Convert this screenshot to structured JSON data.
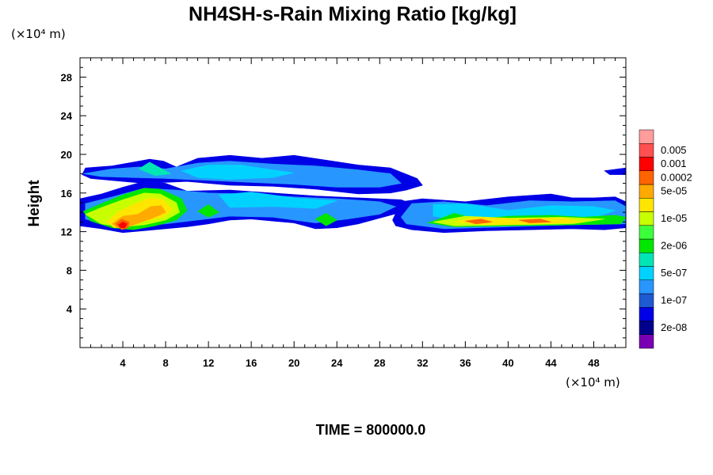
{
  "chart_data": {
    "type": "heatmap",
    "title": "NH4SH-s-Rain Mixing Ratio [kg/kg]",
    "ylabel": "Height",
    "x_unit": "(×10⁴ m)",
    "y_unit": "(×10⁴ m)",
    "xlim": [
      0,
      51
    ],
    "ylim": [
      0,
      30
    ],
    "x_ticks": [
      4,
      8,
      12,
      16,
      20,
      24,
      28,
      32,
      36,
      40,
      44,
      48
    ],
    "y_ticks": [
      4,
      8,
      12,
      16,
      20,
      24,
      28
    ],
    "time_label": "TIME = 800000.0",
    "colorbar": {
      "colors": [
        "#7a00b4",
        "#00008c",
        "#0000e6",
        "#1e5ad2",
        "#2896ff",
        "#00d2ff",
        "#00e6b4",
        "#00e600",
        "#3cff3c",
        "#c8ff00",
        "#ffe600",
        "#ffaa00",
        "#ff6400",
        "#ff0000",
        "#ff5050",
        "#ff9c9c"
      ],
      "labels": [
        {
          "text": "2e-08",
          "band": 1
        },
        {
          "text": "1e-07",
          "band": 3
        },
        {
          "text": "5e-07",
          "band": 5
        },
        {
          "text": "2e-06",
          "band": 7
        },
        {
          "text": "1e-05",
          "band": 9
        },
        {
          "text": "5e-05",
          "band": 11
        },
        {
          "text": "0.0002",
          "band": 12
        },
        {
          "text": "0.001",
          "band": 13
        },
        {
          "text": "0.005",
          "band": 14
        }
      ]
    },
    "regions": [
      {
        "level": 2,
        "points": [
          [
            0.2,
            17.9
          ],
          [
            0.5,
            18.6
          ],
          [
            3,
            18.8
          ],
          [
            5.5,
            19.3
          ],
          [
            6.5,
            19.5
          ],
          [
            7.8,
            19.3
          ],
          [
            9,
            18.7
          ],
          [
            11,
            19.6
          ],
          [
            14,
            19.9
          ],
          [
            17,
            19.6
          ],
          [
            20,
            19.9
          ],
          [
            23,
            19.4
          ],
          [
            26,
            18.9
          ],
          [
            29,
            18.6
          ],
          [
            31.5,
            17.5
          ],
          [
            32,
            16.8
          ],
          [
            30.5,
            16.3
          ],
          [
            29,
            16.0
          ],
          [
            26,
            15.9
          ],
          [
            22,
            16.4
          ],
          [
            18,
            16.7
          ],
          [
            14,
            16.8
          ],
          [
            10,
            17.2
          ],
          [
            6,
            17.0
          ],
          [
            3,
            17.3
          ],
          [
            1,
            17.5
          ]
        ]
      },
      {
        "level": 2,
        "points": [
          [
            0,
            15.4
          ],
          [
            2,
            15.9
          ],
          [
            4,
            16.6
          ],
          [
            6,
            17.2
          ],
          [
            8,
            17.0
          ],
          [
            10,
            16.2
          ],
          [
            14,
            16.3
          ],
          [
            18,
            16.0
          ],
          [
            22,
            15.7
          ],
          [
            26,
            15.5
          ],
          [
            30,
            15.3
          ],
          [
            31,
            14.9
          ],
          [
            30,
            14.0
          ],
          [
            28,
            13.4
          ],
          [
            26,
            12.8
          ],
          [
            24,
            12.4
          ],
          [
            22,
            12.3
          ],
          [
            20,
            12.9
          ],
          [
            18,
            13.1
          ],
          [
            16,
            13.3
          ],
          [
            14,
            13.2
          ],
          [
            12,
            12.8
          ],
          [
            10,
            12.5
          ],
          [
            8,
            12.3
          ],
          [
            6,
            12.1
          ],
          [
            4,
            11.9
          ],
          [
            2,
            12.3
          ],
          [
            0,
            12.6
          ]
        ]
      },
      {
        "level": 2,
        "points": [
          [
            29.2,
            13.2
          ],
          [
            30,
            15.1
          ],
          [
            32,
            15.4
          ],
          [
            36,
            15.1
          ],
          [
            40,
            15.6
          ],
          [
            44,
            15.9
          ],
          [
            46,
            15.5
          ],
          [
            48,
            15.5
          ],
          [
            50,
            15.6
          ],
          [
            51,
            15.1
          ],
          [
            51,
            12.4
          ],
          [
            49,
            12.2
          ],
          [
            46,
            12.3
          ],
          [
            42,
            12.2
          ],
          [
            38,
            12.1
          ],
          [
            34,
            11.9
          ],
          [
            31,
            12.2
          ],
          [
            29.5,
            12.6
          ]
        ]
      },
      {
        "level": 2,
        "points": [
          [
            49,
            18.3
          ],
          [
            51,
            18.6
          ],
          [
            51,
            17.9
          ],
          [
            49.5,
            17.9
          ]
        ]
      },
      {
        "level": 4,
        "points": [
          [
            0.3,
            18.0
          ],
          [
            3,
            18.5
          ],
          [
            5.5,
            18.7
          ],
          [
            8,
            18.5
          ],
          [
            11,
            19.1
          ],
          [
            14,
            19.3
          ],
          [
            18,
            19.0
          ],
          [
            22,
            18.8
          ],
          [
            26,
            18.4
          ],
          [
            29,
            18.0
          ],
          [
            30,
            17.0
          ],
          [
            28,
            16.6
          ],
          [
            24,
            16.6
          ],
          [
            20,
            16.9
          ],
          [
            16,
            17.1
          ],
          [
            12,
            17.3
          ],
          [
            8,
            17.5
          ],
          [
            5,
            17.6
          ],
          [
            2,
            17.7
          ]
        ]
      },
      {
        "level": 4,
        "points": [
          [
            0.5,
            14.9
          ],
          [
            3,
            15.6
          ],
          [
            6,
            16.5
          ],
          [
            9,
            16.3
          ],
          [
            12,
            16.0
          ],
          [
            16,
            15.9
          ],
          [
            20,
            15.6
          ],
          [
            24,
            15.4
          ],
          [
            28,
            15.1
          ],
          [
            29.5,
            14.6
          ],
          [
            28,
            13.8
          ],
          [
            25,
            13.3
          ],
          [
            22,
            12.9
          ],
          [
            18,
            13.5
          ],
          [
            14,
            13.6
          ],
          [
            11,
            13.2
          ],
          [
            8,
            12.8
          ],
          [
            5,
            12.5
          ],
          [
            2,
            12.8
          ],
          [
            0.5,
            13.3
          ]
        ]
      },
      {
        "level": 4,
        "points": [
          [
            30,
            13.5
          ],
          [
            31,
            14.9
          ],
          [
            34,
            15.1
          ],
          [
            38,
            14.7
          ],
          [
            42,
            15.2
          ],
          [
            46,
            15.1
          ],
          [
            50,
            15.2
          ],
          [
            51,
            14.6
          ],
          [
            51,
            12.8
          ],
          [
            46,
            12.7
          ],
          [
            40,
            12.5
          ],
          [
            34,
            12.3
          ],
          [
            30.5,
            12.8
          ]
        ]
      },
      {
        "level": 5,
        "points": [
          [
            9.5,
            18.3
          ],
          [
            12,
            18.9
          ],
          [
            15,
            18.9
          ],
          [
            18,
            18.4
          ],
          [
            20,
            18.1
          ],
          [
            18,
            17.6
          ],
          [
            14,
            17.4
          ],
          [
            11,
            17.6
          ]
        ]
      },
      {
        "level": 5,
        "points": [
          [
            13,
            15.8
          ],
          [
            16,
            16.1
          ],
          [
            20,
            15.5
          ],
          [
            24,
            15.2
          ],
          [
            22,
            14.4
          ],
          [
            18,
            14.6
          ],
          [
            14,
            14.5
          ]
        ]
      },
      {
        "level": 5,
        "points": [
          [
            33,
            14.8
          ],
          [
            36,
            14.9
          ],
          [
            40,
            14.2
          ],
          [
            44,
            14.7
          ],
          [
            48,
            14.6
          ],
          [
            50,
            14.2
          ],
          [
            48,
            13.4
          ],
          [
            42,
            13.2
          ],
          [
            36,
            13.1
          ],
          [
            33,
            13.6
          ]
        ]
      },
      {
        "level": 6,
        "points": [
          [
            5.5,
            18.5
          ],
          [
            6.5,
            19.2
          ],
          [
            7.5,
            18.6
          ],
          [
            8.5,
            18.0
          ],
          [
            7,
            17.8
          ]
        ]
      },
      {
        "level": 7,
        "points": [
          [
            0.3,
            14.1
          ],
          [
            2,
            14.9
          ],
          [
            4,
            15.8
          ],
          [
            6,
            16.5
          ],
          [
            7.5,
            16.4
          ],
          [
            9.5,
            15.4
          ],
          [
            10,
            14.2
          ],
          [
            9,
            13.2
          ],
          [
            7,
            12.6
          ],
          [
            5,
            12.2
          ],
          [
            3,
            12.4
          ],
          [
            1,
            13.1
          ]
        ]
      },
      {
        "level": 7,
        "points": [
          [
            11,
            14.1
          ],
          [
            12,
            14.8
          ],
          [
            13,
            14.0
          ],
          [
            12,
            13.5
          ]
        ]
      },
      {
        "level": 7,
        "points": [
          [
            22,
            13.3
          ],
          [
            23,
            13.9
          ],
          [
            24,
            13.2
          ],
          [
            23,
            12.6
          ]
        ]
      },
      {
        "level": 7,
        "points": [
          [
            32.5,
            12.9
          ],
          [
            35,
            13.9
          ],
          [
            37,
            13.3
          ],
          [
            40,
            13.6
          ],
          [
            44,
            13.7
          ],
          [
            47,
            13.5
          ],
          [
            50,
            13.7
          ],
          [
            51,
            13.5
          ],
          [
            50.5,
            12.8
          ],
          [
            46,
            12.7
          ],
          [
            40,
            12.6
          ],
          [
            35,
            12.5
          ]
        ]
      },
      {
        "level": 9,
        "points": [
          [
            0.5,
            13.8
          ],
          [
            2,
            14.5
          ],
          [
            4,
            15.3
          ],
          [
            6,
            16.0
          ],
          [
            7.5,
            15.9
          ],
          [
            9,
            15.0
          ],
          [
            9.3,
            14.0
          ],
          [
            8,
            13.2
          ],
          [
            6,
            12.7
          ],
          [
            4,
            12.5
          ],
          [
            2,
            12.8
          ]
        ]
      },
      {
        "level": 9,
        "points": [
          [
            33,
            13.0
          ],
          [
            36,
            13.6
          ],
          [
            40,
            13.4
          ],
          [
            45,
            13.5
          ],
          [
            49,
            13.3
          ],
          [
            46,
            12.8
          ],
          [
            40,
            12.7
          ],
          [
            35,
            12.6
          ]
        ]
      },
      {
        "level": 10,
        "points": [
          [
            2.5,
            13.0
          ],
          [
            3.5,
            14.0
          ],
          [
            5,
            14.8
          ],
          [
            6.5,
            15.5
          ],
          [
            7.8,
            15.3
          ],
          [
            8.6,
            14.3
          ],
          [
            7.8,
            13.5
          ],
          [
            6,
            13.1
          ],
          [
            4.5,
            12.6
          ],
          [
            3.2,
            12.4
          ]
        ]
      },
      {
        "level": 10,
        "points": [
          [
            35,
            13.0
          ],
          [
            37,
            13.5
          ],
          [
            41,
            13.3
          ],
          [
            45,
            13.4
          ],
          [
            47,
            13.0
          ],
          [
            43,
            12.8
          ],
          [
            38,
            12.7
          ]
        ]
      },
      {
        "level": 11,
        "points": [
          [
            3,
            12.8
          ],
          [
            4,
            13.6
          ],
          [
            5.4,
            13.8
          ],
          [
            6.6,
            14.6
          ],
          [
            7.6,
            14.7
          ],
          [
            8,
            14.0
          ],
          [
            6.8,
            13.4
          ],
          [
            5.5,
            12.9
          ],
          [
            4.3,
            12.4
          ],
          [
            3.5,
            12.4
          ]
        ]
      },
      {
        "level": 12,
        "points": [
          [
            3.3,
            12.8
          ],
          [
            3.9,
            13.3
          ],
          [
            4.6,
            13.0
          ],
          [
            4.5,
            12.4
          ],
          [
            3.9,
            12.2
          ]
        ]
      },
      {
        "level": 13,
        "points": [
          [
            3.6,
            12.7
          ],
          [
            4.0,
            13.0
          ],
          [
            4.4,
            12.8
          ],
          [
            4.2,
            12.4
          ],
          [
            3.8,
            12.4
          ]
        ]
      },
      {
        "level": 12,
        "points": [
          [
            36,
            13.1
          ],
          [
            37.5,
            13.3
          ],
          [
            38.5,
            13.0
          ],
          [
            37,
            12.8
          ]
        ]
      },
      {
        "level": 12,
        "points": [
          [
            41,
            13.2
          ],
          [
            43,
            13.3
          ],
          [
            44,
            13.0
          ],
          [
            42,
            12.9
          ]
        ]
      }
    ]
  }
}
